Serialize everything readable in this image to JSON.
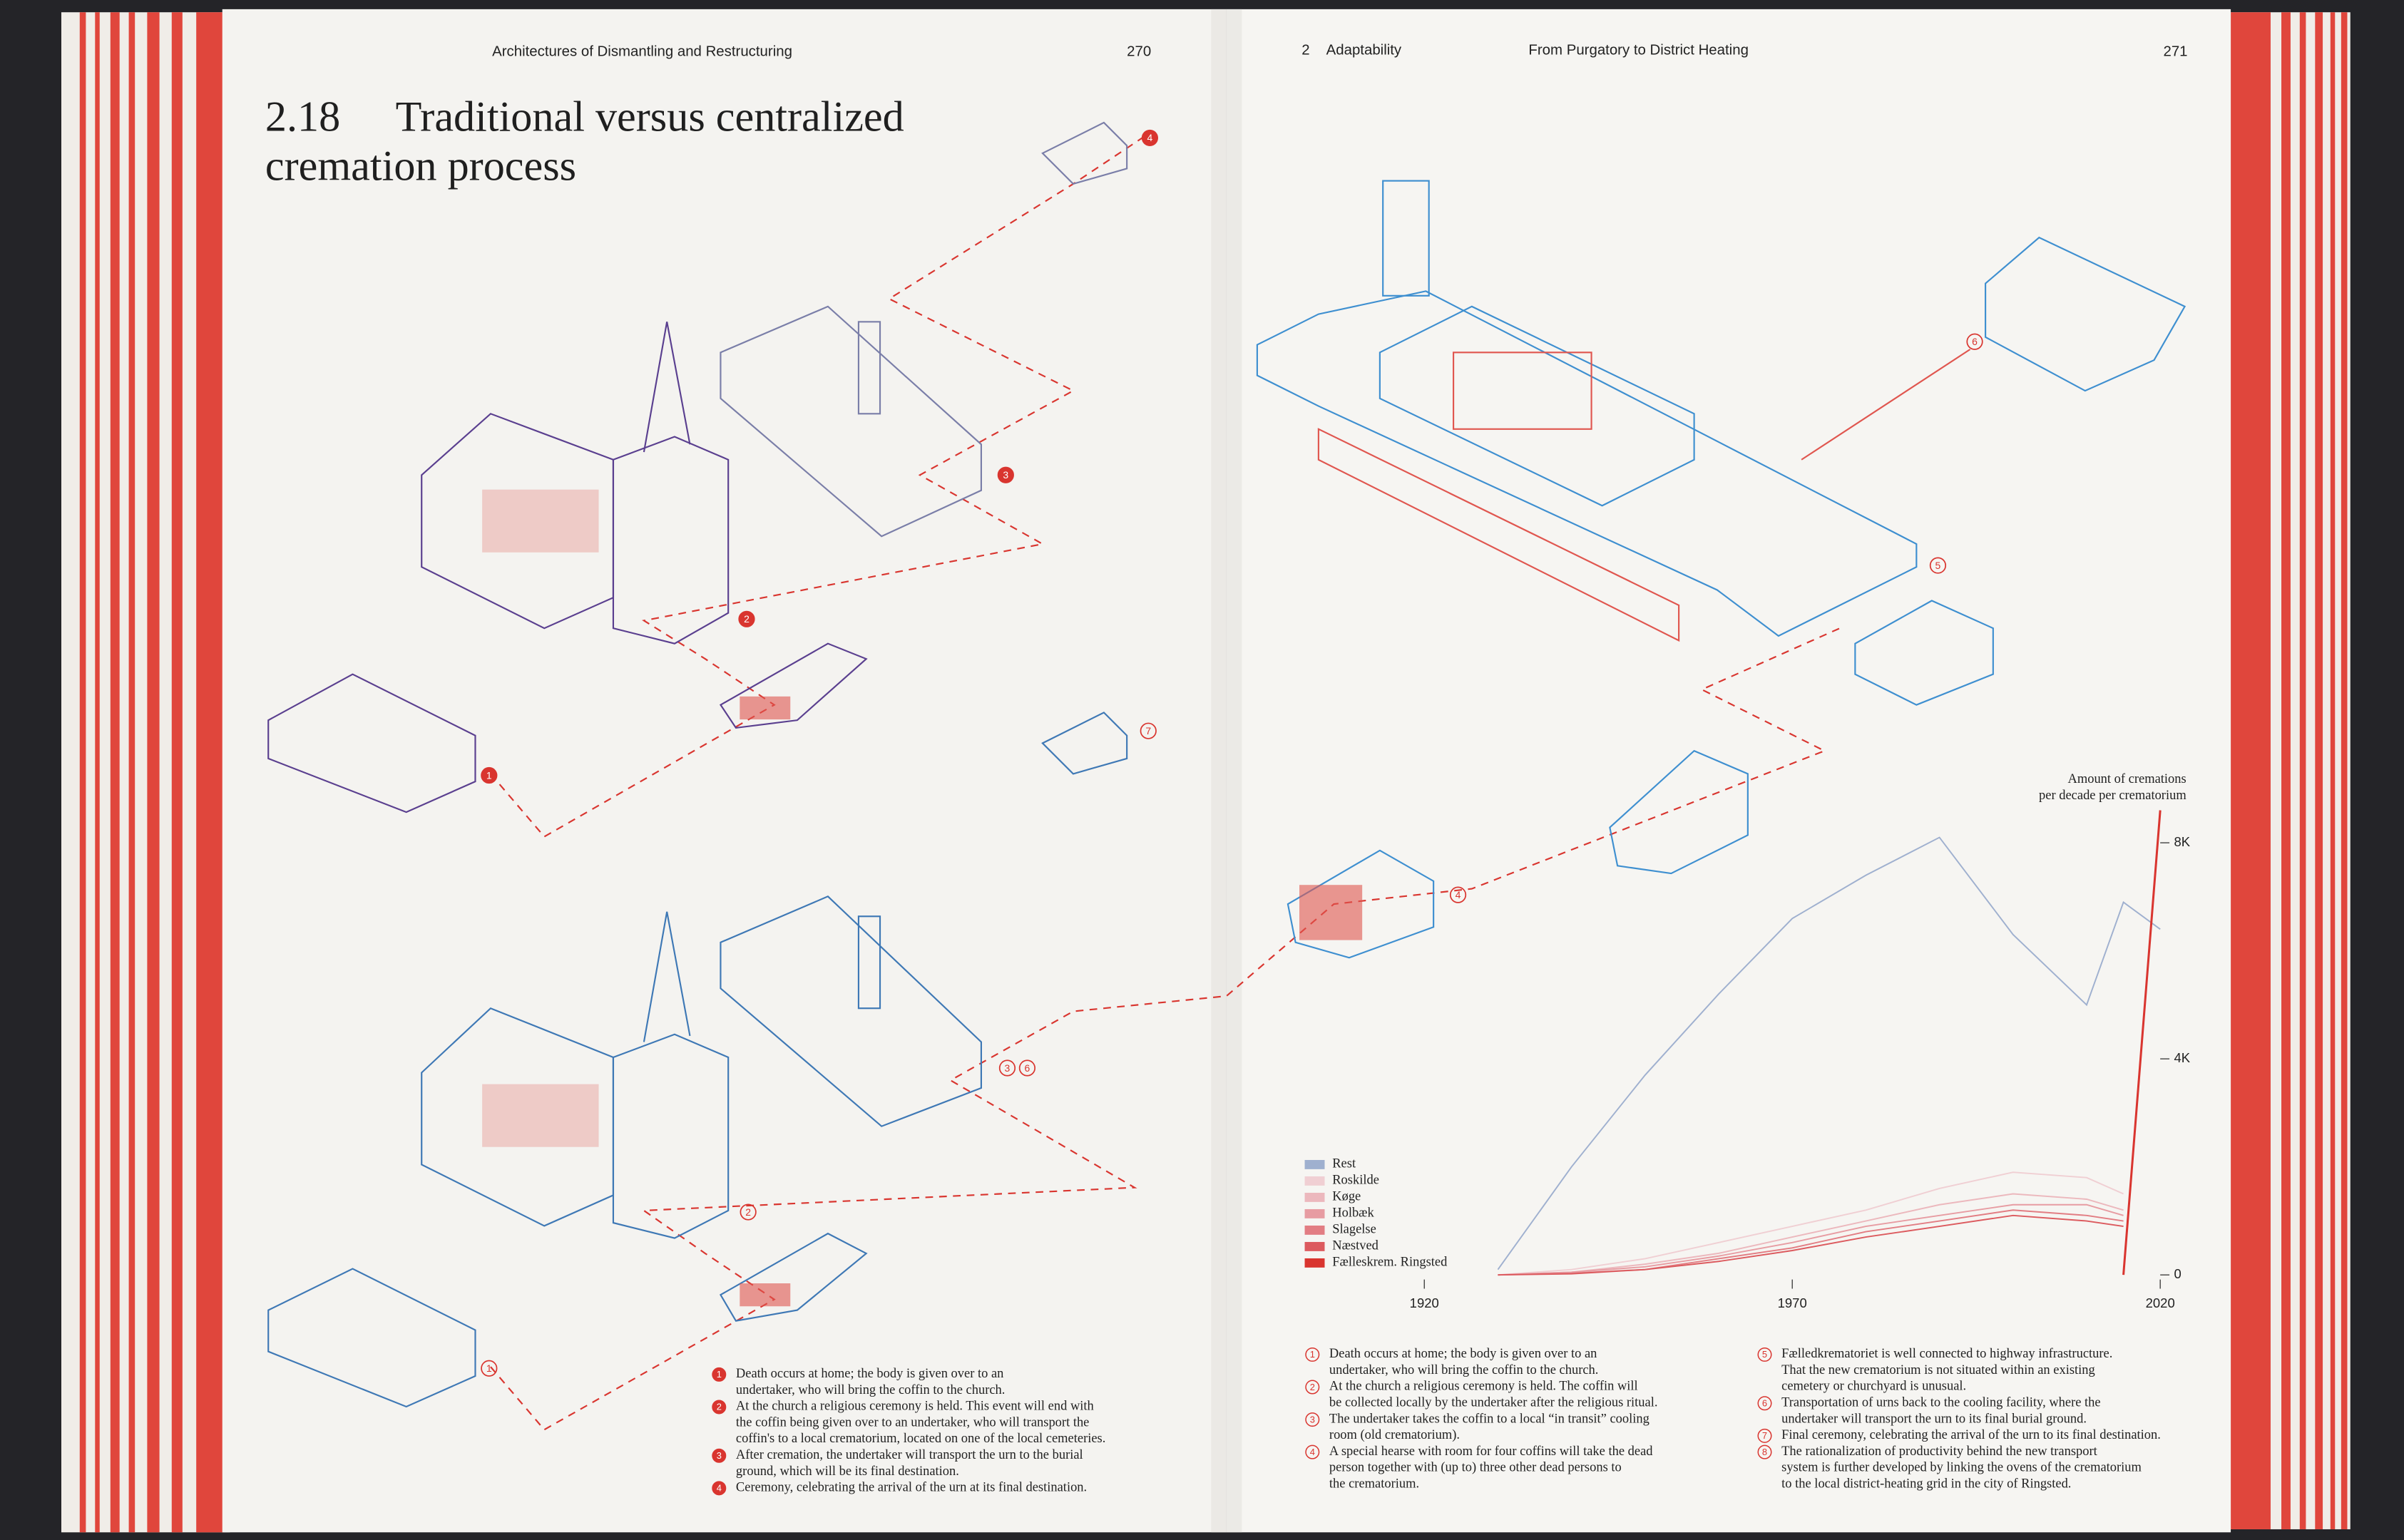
{
  "left_page": {
    "running_head": "Architectures of Dismantling and Restructuring",
    "page_number": "270",
    "figure_number": "2.18",
    "title_lines": [
      "Traditional versus centralized",
      "cremation process"
    ],
    "captions": [
      {
        "number": "1",
        "lines": [
          "Death occurs at home; the body is given over to an",
          "undertaker, who will bring the coffin to the church."
        ]
      },
      {
        "number": "2",
        "lines": [
          "At the church a religious ceremony is held. This event will end with",
          "the coffin being given over to an undertaker, who will transport the",
          "coffin's to a local crematorium, located on one of the local cemeteries."
        ]
      },
      {
        "number": "3",
        "lines": [
          "After cremation, the undertaker will transport the urn to the burial",
          "ground, which will be its final destination."
        ]
      },
      {
        "number": "4",
        "lines": [
          "Ceremony, celebrating the arrival of the urn at its final destination."
        ]
      }
    ],
    "markers": [
      "4",
      "3",
      "2",
      "1",
      "7",
      "3",
      "6",
      "2",
      "1"
    ]
  },
  "right_page": {
    "chapter_number": "2",
    "chapter": "Adaptability",
    "running_head": "From Purgatory to District Heating",
    "page_number": "271",
    "captions": [
      {
        "number": "1",
        "lines": [
          "Death occurs at home; the body is given over to an",
          "undertaker, who will bring the coffin to the church."
        ]
      },
      {
        "number": "2",
        "lines": [
          "At the church a religious ceremony is held. The coffin will",
          "be collected locally by the undertaker after the religious ritual."
        ]
      },
      {
        "number": "3",
        "lines": [
          "The undertaker takes the coffin to a local “in transit” cooling",
          "room (old crematorium)."
        ]
      },
      {
        "number": "4",
        "lines": [
          "A special hearse with room for four coffins will take the dead",
          "person together with (up to) three other dead persons to",
          "the crematorium."
        ]
      },
      {
        "number": "5",
        "lines": [
          "Fælledkrematoriet is well connected to highway infrastructure.",
          "That the new crematorium is not situated within an existing",
          "cemetery or churchyard is unusual."
        ]
      },
      {
        "number": "6",
        "lines": [
          "Transportation of urns back to the cooling facility, where the",
          "undertaker will transport the urn to its final burial ground."
        ]
      },
      {
        "number": "7",
        "lines": [
          "Final ceremony, celebrating the arrival of the urn to its final destination."
        ]
      },
      {
        "number": "8",
        "lines": [
          "The rationalization of productivity behind the new transport",
          "system is further developed by linking the ovens of the crematorium",
          "to the local district-heating grid in the city of Ringsted."
        ]
      }
    ],
    "markers": [
      "6",
      "5",
      "4"
    ]
  },
  "chart_data": {
    "type": "line",
    "title_lines": [
      "Amount of cremations",
      "per decade per crematorium"
    ],
    "x": [
      1930,
      1940,
      1950,
      1960,
      1970,
      1980,
      1990,
      2000,
      2010,
      2015,
      2020
    ],
    "xlim": [
      1920,
      2020
    ],
    "xticks": [
      1920,
      1970,
      2020
    ],
    "ylim": [
      0,
      9000
    ],
    "yticks": [
      {
        "value": 0,
        "label": "0"
      },
      {
        "value": 4000,
        "label": "4K"
      },
      {
        "value": 8000,
        "label": "8K"
      }
    ],
    "series": [
      {
        "name": "Rest",
        "color": "#9fb0cf",
        "values": [
          100,
          2000,
          3700,
          5200,
          6600,
          7400,
          8100,
          6300,
          5000,
          6900,
          6400
        ]
      },
      {
        "name": "Roskilde",
        "color": "#f0cfd3",
        "values": [
          0,
          100,
          300,
          600,
          900,
          1200,
          1600,
          1900,
          1800,
          1500,
          null
        ]
      },
      {
        "name": "Køge",
        "color": "#ecb8bd",
        "values": [
          0,
          50,
          200,
          400,
          700,
          1000,
          1300,
          1500,
          1400,
          1200,
          null
        ]
      },
      {
        "name": "Holbæk",
        "color": "#e79ca2",
        "values": [
          0,
          50,
          150,
          350,
          600,
          900,
          1100,
          1300,
          1300,
          1100,
          null
        ]
      },
      {
        "name": "Slagelse",
        "color": "#e27d83",
        "values": [
          0,
          30,
          100,
          300,
          500,
          800,
          1000,
          1200,
          1100,
          1000,
          null
        ]
      },
      {
        "name": "Næstved",
        "color": "#dc5a5e",
        "values": [
          0,
          20,
          100,
          250,
          450,
          700,
          900,
          1100,
          1000,
          900,
          null
        ]
      },
      {
        "name": "Fælleskrem. Ringsted",
        "color": "#d9352f",
        "values": [
          null,
          null,
          null,
          null,
          null,
          null,
          null,
          null,
          null,
          0,
          8600
        ]
      }
    ]
  }
}
